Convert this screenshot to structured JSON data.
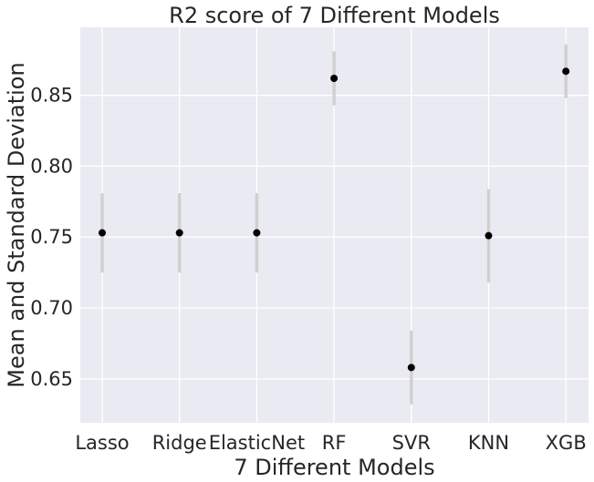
{
  "chart_data": {
    "type": "scatter",
    "title": "R2 score of 7 Different Models",
    "xlabel": "7 Different Models",
    "ylabel": "Mean and Standard Deviation",
    "categories": [
      "Lasso",
      "Ridge",
      "ElasticNet",
      "RF",
      "SVR",
      "KNN",
      "XGB"
    ],
    "series": [
      {
        "values": [
          0.753,
          0.753,
          0.753,
          0.862,
          0.658,
          0.751,
          0.867
        ],
        "std": [
          0.028,
          0.028,
          0.028,
          0.019,
          0.026,
          0.033,
          0.019
        ]
      }
    ],
    "ylim": [
      0.619,
      0.898
    ],
    "yticks": [
      0.65,
      0.7,
      0.75,
      0.8,
      0.85
    ],
    "ytick_labels": [
      "0.65",
      "0.70",
      "0.75",
      "0.80",
      "0.85"
    ],
    "grid": true,
    "colors": {
      "background": "#eaeaf2",
      "point": "#000000",
      "errorbar": "#d0d0d0",
      "grid": "#ffffff"
    }
  }
}
